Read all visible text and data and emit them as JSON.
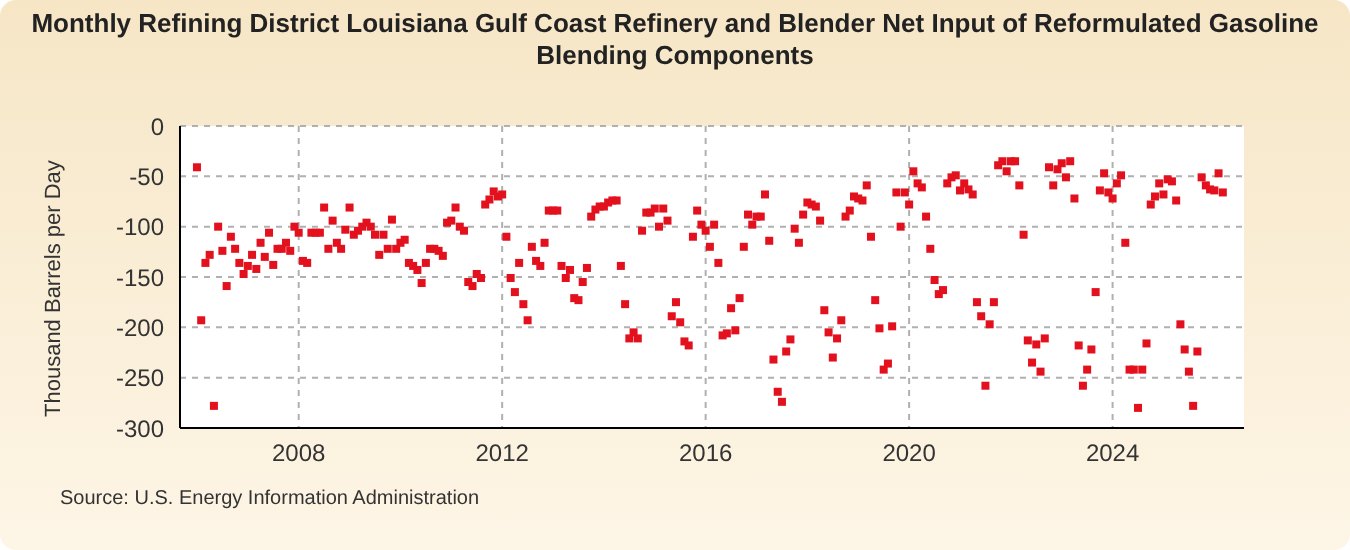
{
  "chart_data": {
    "type": "scatter",
    "title": "Monthly Refining District Louisiana Gulf Coast Refinery and Blender Net Input of Reformulated Gasoline Blending Components",
    "ylabel": "Thousand Barrels per Day",
    "annotations": [
      "Source: U.S. Energy Information Administration"
    ],
    "xlim": [
      "2005-09",
      "2026-08"
    ],
    "xticks": [
      "2008",
      "2012",
      "2016",
      "2020",
      "2024"
    ],
    "ylim": [
      -300,
      0
    ],
    "yticks": [
      -300,
      -250,
      -200,
      -150,
      -100,
      -50,
      0
    ],
    "grid": true,
    "marker": "square",
    "legend": false,
    "series": [
      {
        "color": "#e3101d",
        "x": [
          "2006-01",
          "2006-02",
          "2006-03",
          "2006-04",
          "2006-05",
          "2006-06",
          "2006-07",
          "2006-08",
          "2006-09",
          "2006-10",
          "2006-11",
          "2006-12",
          "2007-01",
          "2007-02",
          "2007-03",
          "2007-04",
          "2007-05",
          "2007-06",
          "2007-07",
          "2007-08",
          "2007-09",
          "2007-10",
          "2007-11",
          "2007-12",
          "2008-01",
          "2008-02",
          "2008-03",
          "2008-04",
          "2008-05",
          "2008-06",
          "2008-07",
          "2008-08",
          "2008-09",
          "2008-10",
          "2008-11",
          "2008-12",
          "2009-01",
          "2009-02",
          "2009-03",
          "2009-04",
          "2009-05",
          "2009-06",
          "2009-07",
          "2009-08",
          "2009-09",
          "2009-10",
          "2009-11",
          "2009-12",
          "2010-01",
          "2010-02",
          "2010-03",
          "2010-04",
          "2010-05",
          "2010-06",
          "2010-07",
          "2010-08",
          "2010-09",
          "2010-10",
          "2010-11",
          "2010-12",
          "2011-01",
          "2011-02",
          "2011-03",
          "2011-04",
          "2011-05",
          "2011-06",
          "2011-07",
          "2011-08",
          "2011-09",
          "2011-10",
          "2011-11",
          "2011-12",
          "2012-01",
          "2012-02",
          "2012-03",
          "2012-04",
          "2012-05",
          "2012-06",
          "2012-07",
          "2012-08",
          "2012-09",
          "2012-10",
          "2012-11",
          "2012-12",
          "2013-01",
          "2013-02",
          "2013-03",
          "2013-04",
          "2013-05",
          "2013-06",
          "2013-07",
          "2013-08",
          "2013-09",
          "2013-10",
          "2013-11",
          "2013-12",
          "2014-01",
          "2014-02",
          "2014-03",
          "2014-04",
          "2014-05",
          "2014-06",
          "2014-07",
          "2014-08",
          "2014-09",
          "2014-10",
          "2014-11",
          "2014-12",
          "2015-01",
          "2015-02",
          "2015-03",
          "2015-04",
          "2015-05",
          "2015-06",
          "2015-07",
          "2015-08",
          "2015-09",
          "2015-10",
          "2015-11",
          "2015-12",
          "2016-01",
          "2016-02",
          "2016-03",
          "2016-04",
          "2016-05",
          "2016-06",
          "2016-07",
          "2016-08",
          "2016-09",
          "2016-10",
          "2016-11",
          "2016-12",
          "2017-01",
          "2017-02",
          "2017-03",
          "2017-04",
          "2017-05",
          "2017-06",
          "2017-07",
          "2017-08",
          "2017-09",
          "2017-10",
          "2017-11",
          "2017-12",
          "2018-01",
          "2018-02",
          "2018-03",
          "2018-04",
          "2018-05",
          "2018-06",
          "2018-07",
          "2018-08",
          "2018-09",
          "2018-10",
          "2018-11",
          "2018-12",
          "2019-01",
          "2019-02",
          "2019-03",
          "2019-04",
          "2019-05",
          "2019-06",
          "2019-07",
          "2019-08",
          "2019-09",
          "2019-10",
          "2019-11",
          "2019-12",
          "2020-01",
          "2020-02",
          "2020-03",
          "2020-04",
          "2020-05",
          "2020-06",
          "2020-07",
          "2020-08",
          "2020-09",
          "2020-10",
          "2020-11",
          "2020-12",
          "2021-01",
          "2021-02",
          "2021-03",
          "2021-04",
          "2021-05",
          "2021-06",
          "2021-07",
          "2021-08",
          "2021-09",
          "2021-10",
          "2021-11",
          "2021-12",
          "2022-01",
          "2022-02",
          "2022-03",
          "2022-04",
          "2022-05",
          "2022-06",
          "2022-07",
          "2022-08",
          "2022-09",
          "2022-10",
          "2022-11",
          "2022-12",
          "2023-01",
          "2023-02",
          "2023-03",
          "2023-04",
          "2023-05",
          "2023-06",
          "2023-07",
          "2023-08",
          "2023-09",
          "2023-10",
          "2023-11",
          "2023-12",
          "2024-01",
          "2024-02",
          "2024-03",
          "2024-04",
          "2024-05",
          "2024-06",
          "2024-07",
          "2024-08",
          "2024-09",
          "2024-10",
          "2024-11",
          "2024-12",
          "2025-01",
          "2025-02",
          "2025-03",
          "2025-04",
          "2025-05",
          "2025-06",
          "2025-07",
          "2025-08",
          "2025-09",
          "2025-10",
          "2025-11",
          "2025-12",
          "2026-01",
          "2026-02",
          "2026-03"
        ],
        "values": [
          -41,
          -193,
          -136,
          -128,
          -278,
          -100,
          -124,
          -159,
          -110,
          -122,
          -136,
          -147,
          -139,
          -128,
          -142,
          -116,
          -130,
          -106,
          -138,
          -122,
          -122,
          -116,
          -124,
          -100,
          -106,
          -134,
          -136,
          -106,
          -106,
          -106,
          -81,
          -122,
          -94,
          -116,
          -122,
          -103,
          -81,
          -108,
          -104,
          -100,
          -96,
          -100,
          -108,
          -128,
          -108,
          -122,
          -93,
          -122,
          -116,
          -113,
          -136,
          -139,
          -143,
          -156,
          -136,
          -122,
          -122,
          -124,
          -129,
          -96,
          -94,
          -81,
          -100,
          -104,
          -155,
          -159,
          -147,
          -151,
          -78,
          -73,
          -65,
          -70,
          -68,
          -110,
          -151,
          -165,
          -136,
          -177,
          -193,
          -120,
          -134,
          -139,
          -116,
          -84,
          -84,
          -84,
          -139,
          -151,
          -143,
          -171,
          -173,
          -155,
          -141,
          -90,
          -83,
          -80,
          -80,
          -76,
          -74,
          -74,
          -139,
          -177,
          -211,
          -205,
          -211,
          -104,
          -86,
          -86,
          -82,
          -100,
          -82,
          -94,
          -189,
          -175,
          -195,
          -214,
          -218,
          -110,
          -84,
          -98,
          -104,
          -120,
          -98,
          -136,
          -208,
          -206,
          -181,
          -203,
          -171,
          -120,
          -88,
          -98,
          -90,
          -90,
          -68,
          -114,
          -232,
          -264,
          -274,
          -224,
          -212,
          -102,
          -116,
          -88,
          -76,
          -78,
          -80,
          -94,
          -183,
          -205,
          -230,
          -211,
          -193,
          -90,
          -84,
          -70,
          -72,
          -74,
          -59,
          -110,
          -173,
          -201,
          -242,
          -236,
          -199,
          -66,
          -100,
          -66,
          -78,
          -45,
          -57,
          -61,
          -90,
          -122,
          -153,
          -167,
          -163,
          -57,
          -51,
          -49,
          -64,
          -57,
          -63,
          -68,
          -175,
          -189,
          -258,
          -197,
          -175,
          -39,
          -35,
          -45,
          -35,
          -35,
          -59,
          -108,
          -213,
          -235,
          -217,
          -244,
          -211,
          -41,
          -59,
          -43,
          -37,
          -51,
          -35,
          -72,
          -218,
          -258,
          -242,
          -222,
          -165,
          -64,
          -47,
          -66,
          -72,
          -57,
          -49,
          -116,
          -242,
          -242,
          -280,
          -242,
          -216,
          -78,
          -70,
          -57,
          -68,
          -53,
          -55,
          -74,
          -197,
          -222,
          -244,
          -278,
          -224,
          -51,
          -59,
          -63,
          -64,
          -47,
          -66
        ]
      }
    ]
  }
}
